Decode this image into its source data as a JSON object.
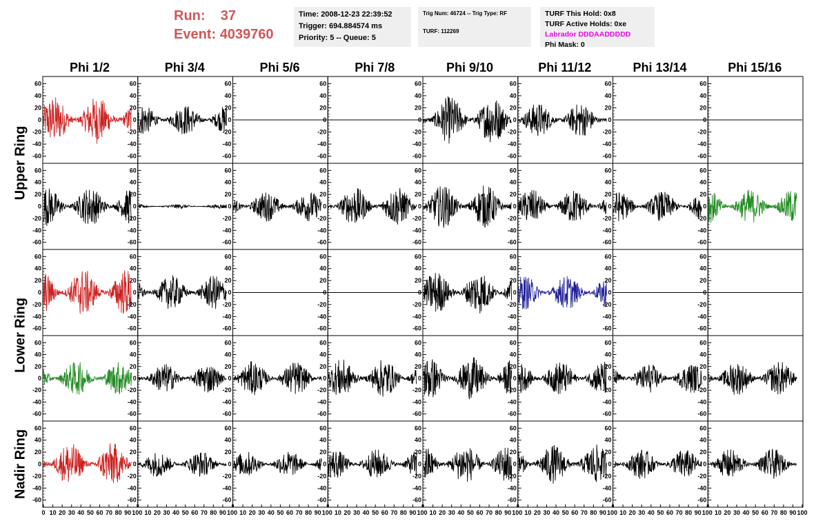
{
  "header": {
    "run_label": "Run:",
    "run_value": "37",
    "event_label": "Event:",
    "event_value": "4039760"
  },
  "info": {
    "time": "Time: 2008-12-23 22:39:52",
    "trigger": "Trigger: 694.884574 ms",
    "priority": "Priority: 5 -- Queue: 5",
    "trig_num": "Trig Num: 46724 -- Trig Type: RF",
    "turf": "TURF: 112269",
    "turf_hold": "TURF This Hold: 0x8",
    "turf_active": "TURF Active Holds: 0xe",
    "labrador": "Labrador DDDAADDDDD",
    "phi_mask": "Phi Mask: 0"
  },
  "colors": {
    "red": "#cc2222",
    "green": "#228b22",
    "blue": "#22229a",
    "black": "#000000",
    "magenta": "#ee00ee",
    "title": "#d45555"
  },
  "chart_data": {
    "type": "line",
    "columns": [
      "Phi 1/2",
      "Phi 3/4",
      "Phi 5/6",
      "Phi 7/8",
      "Phi 9/10",
      "Phi 11/12",
      "Phi 13/14",
      "Phi 15/16"
    ],
    "ring_labels": [
      "Upper Ring",
      "Lower Ring",
      "Nadir Ring"
    ],
    "xlim": [
      0,
      100
    ],
    "ylim": [
      -65,
      65
    ],
    "yticks": [
      -60,
      -40,
      -20,
      0,
      20,
      40,
      60
    ],
    "xticks": [
      0,
      10,
      20,
      30,
      40,
      50,
      60,
      70,
      80,
      90,
      100
    ],
    "rows": [
      {
        "ring": "Upper Ring",
        "panels": [
          {
            "color": "red",
            "amplitude": 22,
            "flat": false
          },
          {
            "color": "black",
            "amplitude": 14,
            "flat": false
          },
          {
            "color": "black",
            "amplitude": 0,
            "flat": true
          },
          {
            "color": "black",
            "amplitude": 0,
            "flat": true
          },
          {
            "color": "black",
            "amplitude": 22,
            "flat": false
          },
          {
            "color": "black",
            "amplitude": 16,
            "flat": false
          },
          {
            "color": "black",
            "amplitude": 0,
            "flat": true
          },
          {
            "color": "black",
            "amplitude": 0,
            "flat": true
          }
        ]
      },
      {
        "ring": "Upper Ring",
        "panels": [
          {
            "color": "black",
            "amplitude": 18,
            "flat": false
          },
          {
            "color": "black",
            "amplitude": 2,
            "flat": false
          },
          {
            "color": "black",
            "amplitude": 14,
            "flat": false
          },
          {
            "color": "black",
            "amplitude": 18,
            "flat": false
          },
          {
            "color": "black",
            "amplitude": 20,
            "flat": false
          },
          {
            "color": "black",
            "amplitude": 16,
            "flat": false
          },
          {
            "color": "black",
            "amplitude": 14,
            "flat": false
          },
          {
            "color": "green",
            "amplitude": 16,
            "flat": false
          }
        ]
      },
      {
        "ring": "Lower Ring",
        "panels": [
          {
            "color": "red",
            "amplitude": 22,
            "flat": false
          },
          {
            "color": "black",
            "amplitude": 16,
            "flat": false
          },
          {
            "color": "black",
            "amplitude": 0,
            "flat": true
          },
          {
            "color": "black",
            "amplitude": 0,
            "flat": true
          },
          {
            "color": "black",
            "amplitude": 20,
            "flat": false
          },
          {
            "color": "blue",
            "amplitude": 16,
            "flat": false
          },
          {
            "color": "black",
            "amplitude": 0,
            "flat": true
          },
          {
            "color": "black",
            "amplitude": 0,
            "flat": true
          }
        ]
      },
      {
        "ring": "Lower Ring",
        "panels": [
          {
            "color": "green",
            "amplitude": 16,
            "flat": false
          },
          {
            "color": "black",
            "amplitude": 14,
            "flat": false
          },
          {
            "color": "black",
            "amplitude": 16,
            "flat": false
          },
          {
            "color": "black",
            "amplitude": 18,
            "flat": false
          },
          {
            "color": "black",
            "amplitude": 20,
            "flat": false
          },
          {
            "color": "black",
            "amplitude": 16,
            "flat": false
          },
          {
            "color": "black",
            "amplitude": 14,
            "flat": false
          },
          {
            "color": "black",
            "amplitude": 16,
            "flat": false
          }
        ]
      },
      {
        "ring": "Nadir Ring",
        "panels": [
          {
            "color": "red",
            "amplitude": 20,
            "flat": false
          },
          {
            "color": "black",
            "amplitude": 12,
            "flat": false
          },
          {
            "color": "black",
            "amplitude": 12,
            "flat": false
          },
          {
            "color": "black",
            "amplitude": 14,
            "flat": false
          },
          {
            "color": "black",
            "amplitude": 18,
            "flat": false
          },
          {
            "color": "black",
            "amplitude": 18,
            "flat": false
          },
          {
            "color": "black",
            "amplitude": 14,
            "flat": false
          },
          {
            "color": "black",
            "amplitude": 14,
            "flat": false
          }
        ]
      }
    ]
  }
}
